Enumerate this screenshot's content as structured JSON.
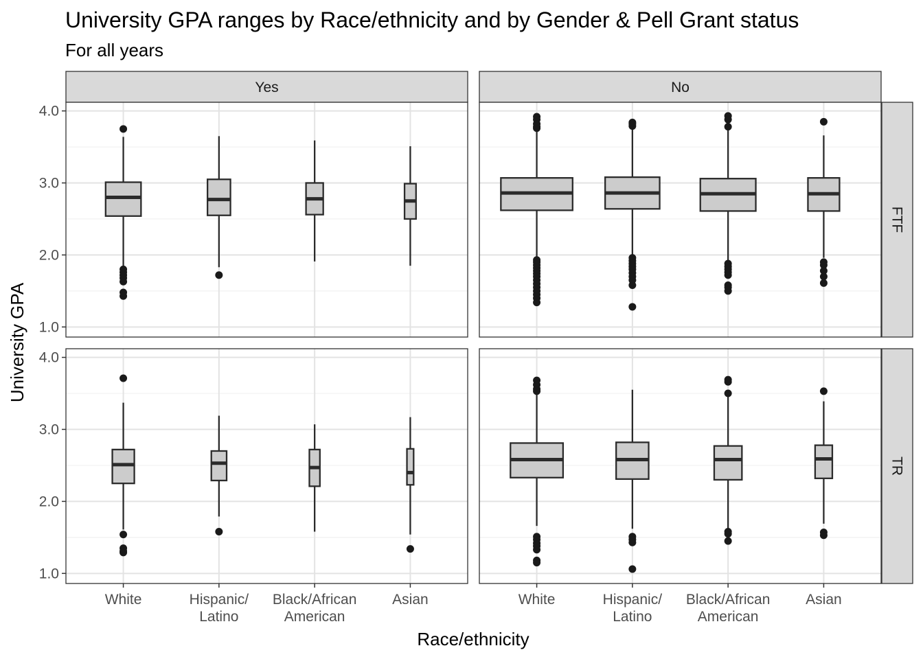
{
  "chart_data": {
    "type": "boxplot",
    "title": "University GPA ranges by Race/ethnicity and by Gender & Pell Grant status",
    "subtitle": "For all years",
    "xlabel": "Race/ethnicity",
    "ylabel": "University GPA",
    "ylim": [
      0.86,
      4.12
    ],
    "y_ticks": [
      "1.0",
      "2.0",
      "3.0",
      "4.0"
    ],
    "y_tick_values": [
      1.0,
      2.0,
      3.0,
      4.0
    ],
    "categories": [
      "White",
      "Hispanic/\nLatino",
      "Black/African\nAmerican",
      "Asian"
    ],
    "col_facets": [
      "Yes",
      "No"
    ],
    "row_facets": [
      "FTF",
      "TR"
    ],
    "grid": true,
    "box_fill": "#cccccc",
    "box_stroke": "#2b2b2b",
    "panels": [
      {
        "col": "Yes",
        "row": "FTF",
        "boxes": [
          {
            "category": "White",
            "q1": 2.54,
            "median": 2.8,
            "q3": 3.01,
            "whisker_low": 1.85,
            "whisker_high": 3.64,
            "width": 0.37,
            "outliers": [
              3.75,
              1.8,
              1.76,
              1.72,
              1.68,
              1.63,
              1.48,
              1.43
            ]
          },
          {
            "category": "Hispanic/Latino",
            "q1": 2.55,
            "median": 2.77,
            "q3": 3.05,
            "whisker_low": 1.83,
            "whisker_high": 3.65,
            "width": 0.24,
            "outliers": [
              1.72
            ]
          },
          {
            "category": "Black/African American",
            "q1": 2.56,
            "median": 2.78,
            "q3": 3.0,
            "whisker_low": 1.91,
            "whisker_high": 3.59,
            "width": 0.18,
            "outliers": []
          },
          {
            "category": "Asian",
            "q1": 2.5,
            "median": 2.75,
            "q3": 2.99,
            "whisker_low": 1.85,
            "whisker_high": 3.51,
            "width": 0.12,
            "outliers": []
          }
        ]
      },
      {
        "col": "No",
        "row": "FTF",
        "boxes": [
          {
            "category": "White",
            "q1": 2.62,
            "median": 2.86,
            "q3": 3.07,
            "whisker_low": 1.95,
            "whisker_high": 3.72,
            "width": 0.75,
            "outliers": [
              3.92,
              3.88,
              3.82,
              3.78,
              3.76,
              1.93,
              1.9,
              1.86,
              1.82,
              1.78,
              1.74,
              1.7,
              1.65,
              1.6,
              1.55,
              1.5,
              1.45,
              1.4,
              1.34
            ]
          },
          {
            "category": "Hispanic/Latino",
            "q1": 2.64,
            "median": 2.86,
            "q3": 3.08,
            "whisker_low": 1.98,
            "whisker_high": 3.75,
            "width": 0.57,
            "outliers": [
              3.84,
              3.82,
              3.79,
              1.96,
              1.92,
              1.88,
              1.84,
              1.8,
              1.75,
              1.7,
              1.65,
              1.58,
              1.28
            ]
          },
          {
            "category": "Black/African American",
            "q1": 2.61,
            "median": 2.85,
            "q3": 3.06,
            "whisker_low": 1.92,
            "whisker_high": 3.74,
            "width": 0.58,
            "outliers": [
              3.93,
              3.88,
              3.78,
              1.88,
              1.84,
              1.8,
              1.76,
              1.72,
              1.58,
              1.55,
              1.5
            ]
          },
          {
            "category": "Asian",
            "q1": 2.61,
            "median": 2.85,
            "q3": 3.07,
            "whisker_low": 1.96,
            "whisker_high": 3.66,
            "width": 0.33,
            "outliers": [
              3.85,
              1.9,
              1.86,
              1.78,
              1.7,
              1.61
            ]
          }
        ]
      },
      {
        "col": "Yes",
        "row": "TR",
        "boxes": [
          {
            "category": "White",
            "q1": 2.25,
            "median": 2.51,
            "q3": 2.72,
            "whisker_low": 1.61,
            "whisker_high": 3.37,
            "width": 0.23,
            "outliers": [
              3.71,
              1.54,
              1.35,
              1.31,
              1.29
            ]
          },
          {
            "category": "Hispanic/Latino",
            "q1": 2.29,
            "median": 2.53,
            "q3": 2.7,
            "whisker_low": 1.79,
            "whisker_high": 3.19,
            "width": 0.16,
            "outliers": [
              1.58
            ]
          },
          {
            "category": "Black/African American",
            "q1": 2.21,
            "median": 2.47,
            "q3": 2.72,
            "whisker_low": 1.58,
            "whisker_high": 3.07,
            "width": 0.11,
            "outliers": []
          },
          {
            "category": "Asian",
            "q1": 2.23,
            "median": 2.4,
            "q3": 2.73,
            "whisker_low": 1.54,
            "whisker_high": 3.17,
            "width": 0.07,
            "outliers": [
              1.34
            ]
          }
        ]
      },
      {
        "col": "No",
        "row": "TR",
        "boxes": [
          {
            "category": "White",
            "q1": 2.33,
            "median": 2.58,
            "q3": 2.81,
            "whisker_low": 1.66,
            "whisker_high": 3.5,
            "width": 0.55,
            "outliers": [
              3.68,
              3.62,
              3.56,
              3.53,
              1.51,
              1.47,
              1.42,
              1.38,
              1.33,
              1.18,
              1.15
            ]
          },
          {
            "category": "Hispanic/Latino",
            "q1": 2.31,
            "median": 2.58,
            "q3": 2.82,
            "whisker_low": 1.62,
            "whisker_high": 3.55,
            "width": 0.34,
            "outliers": [
              1.51,
              1.47,
              1.43,
              1.06
            ]
          },
          {
            "category": "Black/African American",
            "q1": 2.3,
            "median": 2.58,
            "q3": 2.77,
            "whisker_low": 1.61,
            "whisker_high": 3.47,
            "width": 0.29,
            "outliers": [
              3.69,
              3.66,
              3.5,
              1.58,
              1.55,
              1.45
            ]
          },
          {
            "category": "Asian",
            "q1": 2.32,
            "median": 2.59,
            "q3": 2.78,
            "whisker_low": 1.69,
            "whisker_high": 3.39,
            "width": 0.18,
            "outliers": [
              3.53,
              1.57,
              1.53
            ]
          }
        ]
      }
    ]
  }
}
